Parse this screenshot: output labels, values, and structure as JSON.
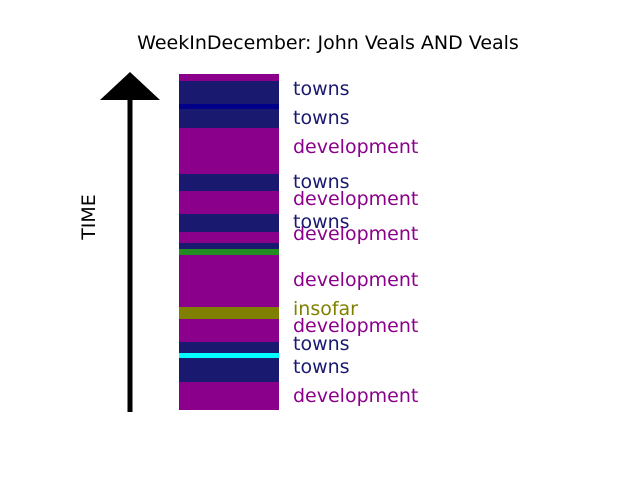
{
  "chart_data": {
    "type": "bar",
    "title": "WeekInDecember: John Veals AND Veals",
    "ylabel": "TIME",
    "colors": {
      "towns": "#191970",
      "development": "#8b008b",
      "insofar": "#808000",
      "axis": "#000000"
    },
    "segments": [
      {
        "color": "#8b008b"
      },
      {
        "color": "#191970",
        "label": "towns"
      },
      {
        "color": "#00008b"
      },
      {
        "color": "#191970",
        "label": "towns"
      },
      {
        "color": "#8b008b",
        "label": "development"
      },
      {
        "color": "#191970",
        "label": "towns"
      },
      {
        "color": "#8b008b",
        "label": "development"
      },
      {
        "color": "#191970",
        "label": "towns"
      },
      {
        "color": "#8b008b",
        "label": "development"
      },
      {
        "color": "#191970"
      },
      {
        "color": "#228b22"
      },
      {
        "color": "#8b008b",
        "label": "development"
      },
      {
        "color": "#808000",
        "label": "insofar"
      },
      {
        "color": "#8b008b",
        "label": "development"
      },
      {
        "color": "#191970",
        "label": "towns"
      },
      {
        "color": "#00ffff"
      },
      {
        "color": "#191970",
        "label": "towns"
      },
      {
        "color": "#8b008b",
        "label": "development"
      }
    ]
  }
}
